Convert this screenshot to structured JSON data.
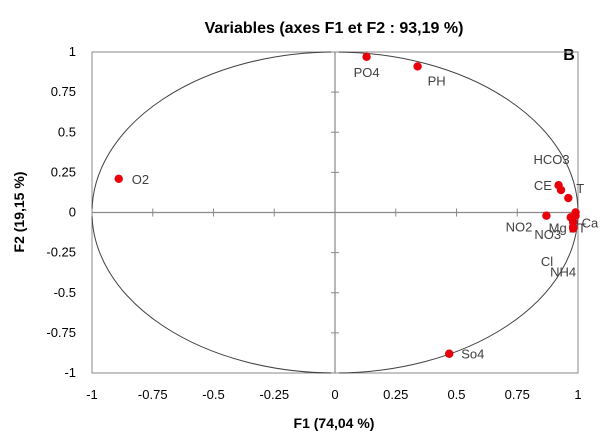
{
  "chart_data": {
    "type": "scatter",
    "title": "Variables (axes F1 et F2 : 93,19 %)",
    "panel_label": "B",
    "xlabel": "F1 (74,04 %)",
    "ylabel": "F2 (19,15 %)",
    "xlim": [
      -1,
      1
    ],
    "ylim": [
      -1,
      1
    ],
    "x_ticks": [
      "-1",
      "-0.75",
      "-0.5",
      "-0.25",
      "0",
      "0.25",
      "0.5",
      "0.75",
      "1"
    ],
    "y_ticks": [
      "1",
      "0.75",
      "0.5",
      "0.25",
      "0",
      "-0.25",
      "-0.5",
      "-0.75",
      "-1"
    ],
    "unit_circle": true,
    "grid": false,
    "point_color": "#e8000b",
    "points": [
      {
        "label": "PO4",
        "x": 0.13,
        "y": 0.97
      },
      {
        "label": "PH",
        "x": 0.34,
        "y": 0.91
      },
      {
        "label": "O2",
        "x": -0.89,
        "y": 0.21
      },
      {
        "label": "HCO3",
        "x": 0.92,
        "y": 0.17
      },
      {
        "label": "CE",
        "x": 0.93,
        "y": 0.14
      },
      {
        "label": "T",
        "x": 0.96,
        "y": 0.09
      },
      {
        "label": "NO2",
        "x": 0.87,
        "y": -0.02
      },
      {
        "label": "Mg",
        "x": 0.97,
        "y": -0.03
      },
      {
        "label": "DT",
        "x": 0.99,
        "y": 0.0
      },
      {
        "label": "Ca",
        "x": 0.99,
        "y": -0.02
      },
      {
        "label": "NO3",
        "x": 0.98,
        "y": -0.06
      },
      {
        "label": "Cl",
        "x": 0.98,
        "y": -0.09
      },
      {
        "label": "NH4",
        "x": 0.98,
        "y": -0.1
      },
      {
        "label": "So4",
        "x": 0.47,
        "y": -0.88
      }
    ]
  }
}
